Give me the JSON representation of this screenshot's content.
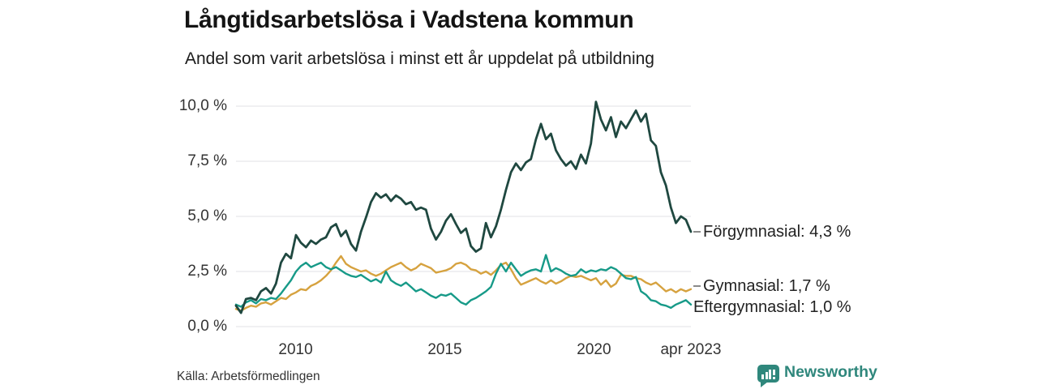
{
  "header": {
    "title": "Långtidsarbetslösa i Vadstena kommun",
    "subtitle": "Andel som varit arbetslösa i minst ett år uppdelat på utbildning"
  },
  "footer": {
    "source": "Källa: Arbetsförmedlingen",
    "brand_name": "Newsworthy",
    "brand_icon": "newsworthy-speech-bubble-bar-chart-icon"
  },
  "colors": {
    "background": "#ffffff",
    "grid": "#e6e6ea",
    "title_text": "#141414",
    "axis_text": "#333333",
    "end_label_text": "#222222",
    "connector_dash": "#8a8a8a",
    "brand_teal": "#2f877c",
    "forgymnasial_line": "#1f4840",
    "gymnasial_line": "#d6a23f",
    "eftergymnasial_line": "#179a88"
  },
  "chart_data": {
    "type": "line",
    "title": "Långtidsarbetslösa i Vadstena kommun",
    "subtitle": "Andel som varit arbetslösa i minst ett år uppdelat på utbildning",
    "xlabel": "",
    "ylabel": "",
    "x_start": 2008.0,
    "x_end": 2023.25,
    "x_note": "values sampled uniformly from Jan 2008 to Apr 2023",
    "ylim": [
      0,
      10
    ],
    "grid": "horizontal",
    "legend_position": "right-end-labels",
    "y_ticks": {
      "values": [
        0,
        2.5,
        5,
        7.5,
        10
      ],
      "labels": [
        "0,0 %",
        "2,5 %",
        "5,0 %",
        "7,5 %",
        "10,0 %"
      ]
    },
    "x_ticks": [
      {
        "label": "2010",
        "x": 2010
      },
      {
        "label": "2015",
        "x": 2015
      },
      {
        "label": "2020",
        "x": 2020
      },
      {
        "label": "apr 2023",
        "x": 2023.25
      }
    ],
    "series": [
      {
        "id": "forgymnasial",
        "name": "Förgymnasial",
        "end_label": "Förgymnasial: 4,3 %",
        "end_value": 4.3,
        "label_value": 4.3,
        "label_dash": true,
        "color": "#1f4840",
        "values": [
          0.95,
          0.62,
          1.25,
          1.3,
          1.2,
          1.6,
          1.75,
          1.5,
          1.95,
          2.9,
          3.3,
          3.1,
          4.15,
          3.8,
          3.6,
          3.9,
          3.75,
          3.95,
          4.05,
          4.5,
          4.65,
          4.1,
          4.35,
          3.75,
          3.45,
          4.3,
          4.95,
          5.65,
          6.05,
          5.85,
          6.0,
          5.7,
          5.95,
          5.8,
          5.55,
          5.65,
          5.3,
          5.4,
          5.3,
          4.45,
          3.95,
          4.3,
          4.8,
          5.1,
          4.65,
          4.25,
          4.45,
          3.65,
          3.4,
          3.55,
          4.7,
          4.05,
          4.55,
          5.3,
          6.2,
          7.0,
          7.4,
          7.1,
          7.45,
          7.6,
          8.5,
          9.2,
          8.5,
          8.75,
          8.0,
          7.6,
          7.3,
          7.5,
          7.15,
          7.8,
          7.4,
          8.3,
          10.2,
          9.4,
          8.9,
          9.5,
          8.6,
          9.3,
          9.0,
          9.4,
          9.8,
          9.3,
          9.65,
          8.45,
          8.2,
          7.0,
          6.4,
          5.4,
          4.7,
          5.0,
          4.85,
          4.3
        ]
      },
      {
        "id": "gymnasial",
        "name": "Gymnasial",
        "end_label": "Gymnasial: 1,7 %",
        "end_value": 1.7,
        "label_value": 1.85,
        "label_dash": true,
        "color": "#d6a23f",
        "values": [
          0.8,
          0.72,
          0.85,
          0.95,
          0.9,
          1.05,
          1.1,
          1.0,
          1.15,
          1.3,
          1.25,
          1.45,
          1.55,
          1.7,
          1.65,
          1.85,
          1.95,
          2.1,
          2.3,
          2.55,
          2.9,
          3.2,
          2.85,
          2.7,
          2.6,
          2.5,
          2.55,
          2.4,
          2.3,
          2.4,
          2.55,
          2.7,
          2.8,
          2.9,
          2.7,
          2.55,
          2.65,
          2.85,
          2.75,
          2.65,
          2.45,
          2.5,
          2.55,
          2.65,
          2.85,
          2.9,
          2.8,
          2.6,
          2.55,
          2.4,
          2.5,
          2.35,
          2.55,
          2.8,
          2.9,
          2.6,
          2.2,
          1.9,
          2.0,
          2.1,
          2.2,
          2.05,
          1.95,
          2.1,
          1.95,
          2.05,
          2.2,
          2.3,
          2.25,
          2.3,
          2.2,
          2.1,
          2.2,
          1.9,
          2.1,
          1.8,
          1.95,
          2.35,
          2.3,
          2.3,
          2.2,
          2.15,
          2.0,
          1.9,
          2.0,
          1.8,
          1.6,
          1.7,
          1.55,
          1.7,
          1.6,
          1.7
        ]
      },
      {
        "id": "eftergymnasial",
        "name": "Eftergymnasial",
        "end_label": "Eftergymnasial: 1,0 %",
        "end_value": 1.0,
        "label_value": 0.87,
        "label_dash": false,
        "color": "#179a88",
        "values": [
          1.0,
          0.9,
          1.1,
          1.2,
          1.05,
          1.25,
          1.2,
          1.3,
          1.25,
          1.5,
          1.8,
          2.1,
          2.5,
          2.75,
          2.9,
          2.7,
          2.8,
          2.9,
          2.7,
          2.6,
          2.7,
          2.55,
          2.4,
          2.3,
          2.25,
          2.35,
          2.2,
          2.05,
          2.15,
          2.0,
          2.5,
          2.1,
          1.95,
          1.85,
          2.0,
          1.8,
          1.6,
          1.7,
          1.55,
          1.4,
          1.3,
          1.45,
          1.4,
          1.5,
          1.3,
          1.1,
          1.0,
          1.2,
          1.3,
          1.45,
          1.6,
          1.8,
          2.4,
          2.85,
          2.5,
          2.9,
          2.6,
          2.3,
          2.45,
          2.55,
          2.6,
          2.5,
          3.25,
          2.5,
          2.65,
          2.55,
          2.4,
          2.3,
          2.35,
          2.6,
          2.45,
          2.55,
          2.5,
          2.6,
          2.55,
          2.7,
          2.6,
          2.4,
          2.2,
          2.15,
          2.25,
          1.6,
          1.45,
          1.2,
          1.15,
          1.0,
          0.95,
          0.85,
          1.0,
          1.1,
          1.2,
          1.0
        ]
      }
    ]
  }
}
